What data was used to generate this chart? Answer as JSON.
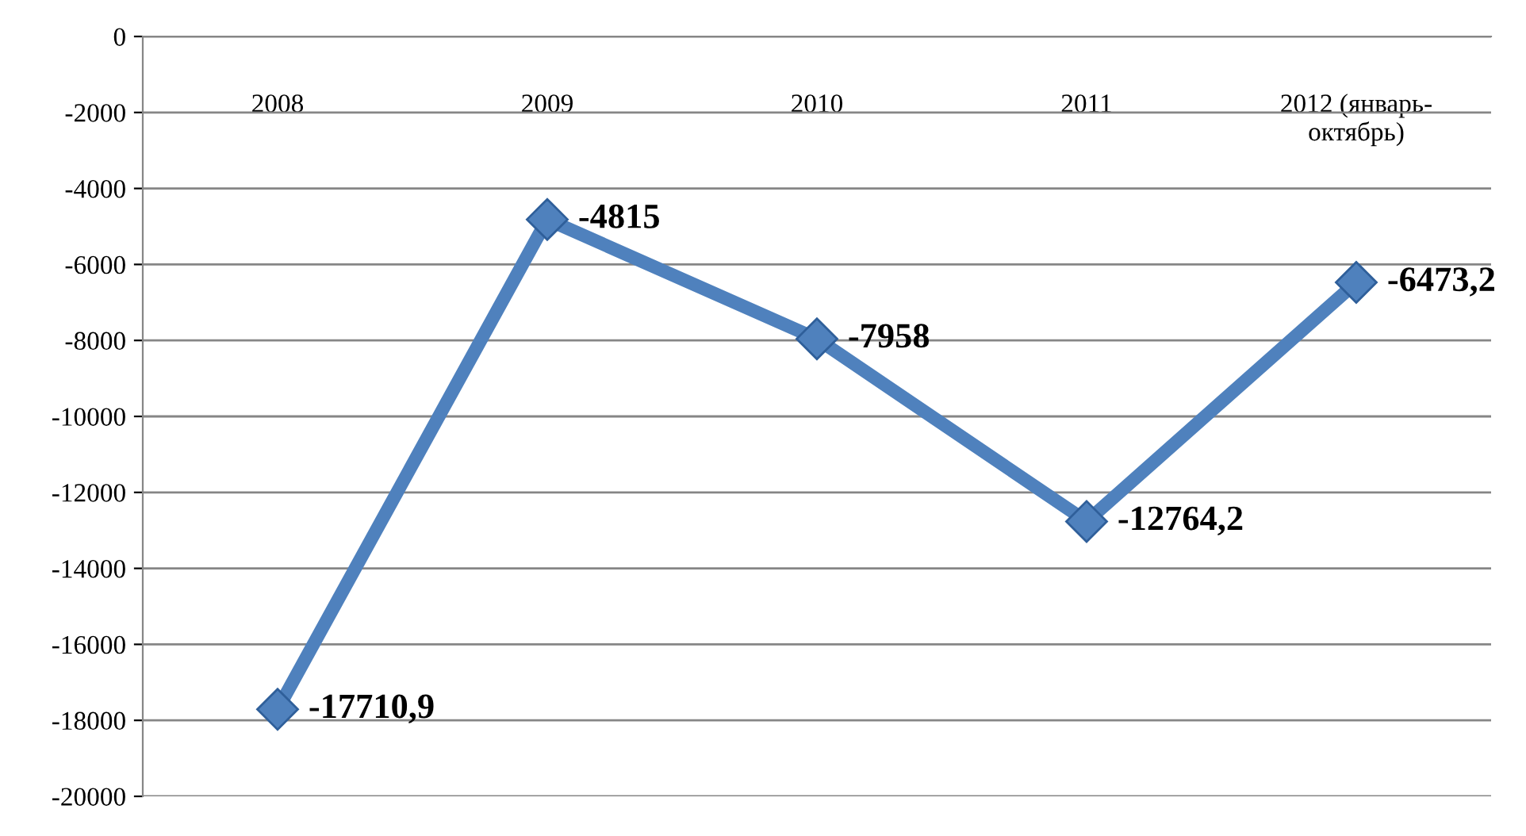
{
  "chart_data": {
    "type": "line",
    "categories": [
      "2008",
      "2009",
      "2010",
      "2011",
      "2012 (январь-\nоктябрь)"
    ],
    "series": [
      {
        "color": "#4f81bd",
        "values": [
          -17710.9,
          -4815,
          -7958,
          -12764.2,
          -6473.2
        ],
        "value_labels": [
          "-17710,9",
          "-4815",
          "-7958",
          "-12764,2",
          "-6473,2"
        ]
      }
    ],
    "ylim": [
      -20000,
      0
    ],
    "yticks": [
      0,
      -2000,
      -4000,
      -6000,
      -8000,
      -10000,
      -12000,
      -14000,
      -16000,
      -18000,
      -20000
    ],
    "grid": "y",
    "marker": "diamond",
    "line_style": "solid",
    "legend": false
  }
}
